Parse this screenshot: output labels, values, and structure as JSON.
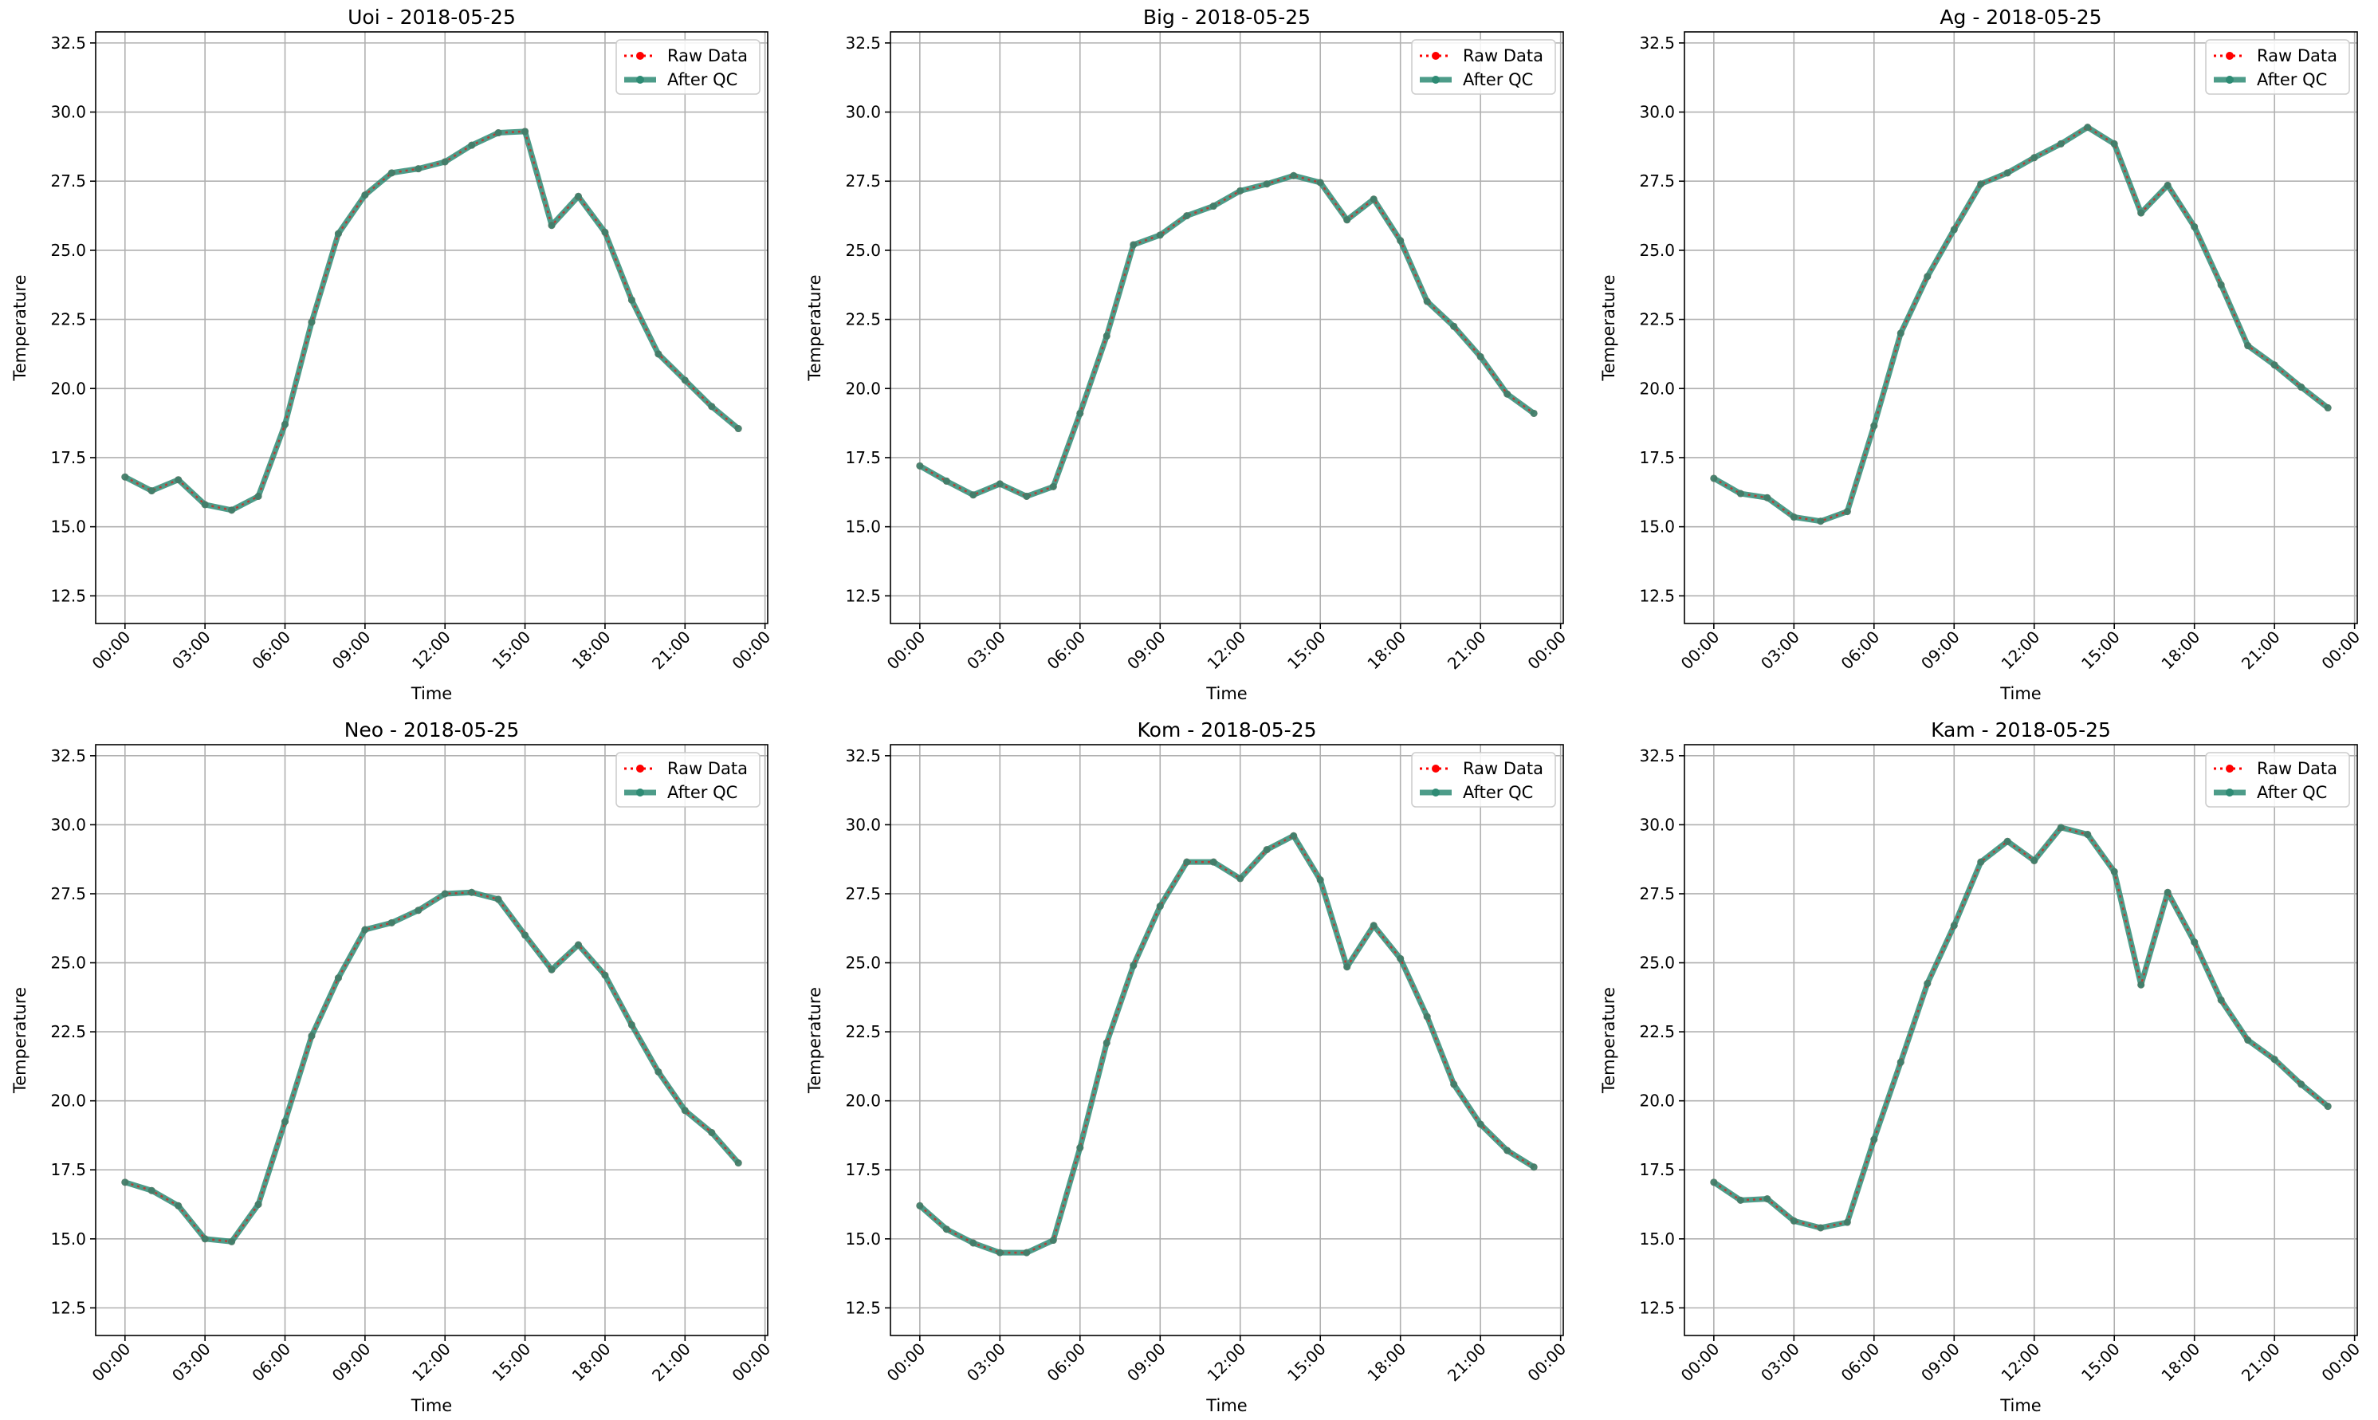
{
  "chart_data": [
    {
      "type": "line",
      "title": "Uoi - 2018-05-25",
      "xlabel": "Time",
      "ylabel": "Temperature",
      "xlim_hours": [
        -1.1,
        24.1
      ],
      "ylim": [
        11.5,
        32.9
      ],
      "x_tick_labels": [
        "00:00",
        "03:00",
        "06:00",
        "09:00",
        "12:00",
        "15:00",
        "18:00",
        "21:00",
        "00:00"
      ],
      "y_tick_labels": [
        "12.5",
        "15.0",
        "17.5",
        "20.0",
        "22.5",
        "25.0",
        "27.5",
        "30.0",
        "32.5"
      ],
      "grid": true,
      "legend_position": "upper-right",
      "legend": [
        "Raw Data",
        "After QC"
      ],
      "x": [
        "00:00",
        "01:00",
        "02:00",
        "03:00",
        "04:00",
        "05:00",
        "06:00",
        "07:00",
        "08:00",
        "09:00",
        "10:00",
        "11:00",
        "12:00",
        "13:00",
        "14:00",
        "15:00",
        "16:00",
        "17:00",
        "18:00",
        "19:00",
        "20:00",
        "21:00",
        "22:00",
        "23:00"
      ],
      "series": [
        {
          "name": "Raw Data",
          "values": [
            16.8,
            16.3,
            16.7,
            15.8,
            15.6,
            16.1,
            18.7,
            22.4,
            25.6,
            27.0,
            27.8,
            27.95,
            28.2,
            28.8,
            29.25,
            29.3,
            25.9,
            26.95,
            25.65,
            23.2,
            21.25,
            20.3,
            19.35,
            18.55
          ]
        },
        {
          "name": "After QC",
          "values": [
            16.8,
            16.3,
            16.7,
            15.8,
            15.6,
            16.1,
            18.7,
            22.4,
            25.6,
            27.0,
            27.8,
            27.95,
            28.2,
            28.8,
            29.25,
            29.3,
            25.9,
            26.95,
            25.65,
            23.2,
            21.25,
            20.3,
            19.35,
            18.55
          ]
        }
      ]
    },
    {
      "type": "line",
      "title": "Big - 2018-05-25",
      "xlabel": "Time",
      "ylabel": "Temperature",
      "xlim_hours": [
        -1.1,
        24.1
      ],
      "ylim": [
        11.5,
        32.9
      ],
      "x_tick_labels": [
        "00:00",
        "03:00",
        "06:00",
        "09:00",
        "12:00",
        "15:00",
        "18:00",
        "21:00",
        "00:00"
      ],
      "y_tick_labels": [
        "12.5",
        "15.0",
        "17.5",
        "20.0",
        "22.5",
        "25.0",
        "27.5",
        "30.0",
        "32.5"
      ],
      "grid": true,
      "legend_position": "upper-right",
      "legend": [
        "Raw Data",
        "After QC"
      ],
      "x": [
        "00:00",
        "01:00",
        "02:00",
        "03:00",
        "04:00",
        "05:00",
        "06:00",
        "07:00",
        "08:00",
        "09:00",
        "10:00",
        "11:00",
        "12:00",
        "13:00",
        "14:00",
        "15:00",
        "16:00",
        "17:00",
        "18:00",
        "19:00",
        "20:00",
        "21:00",
        "22:00",
        "23:00"
      ],
      "series": [
        {
          "name": "Raw Data",
          "values": [
            17.2,
            16.65,
            16.15,
            16.55,
            16.1,
            16.45,
            19.1,
            21.9,
            25.2,
            25.55,
            26.25,
            26.6,
            27.15,
            27.4,
            27.7,
            27.45,
            26.1,
            26.85,
            25.35,
            23.15,
            22.25,
            21.15,
            19.8,
            19.1
          ]
        },
        {
          "name": "After QC",
          "values": [
            17.2,
            16.65,
            16.15,
            16.55,
            16.1,
            16.45,
            19.1,
            21.9,
            25.2,
            25.55,
            26.25,
            26.6,
            27.15,
            27.4,
            27.7,
            27.45,
            26.1,
            26.85,
            25.35,
            23.15,
            22.25,
            21.15,
            19.8,
            19.1
          ]
        }
      ]
    },
    {
      "type": "line",
      "title": "Ag - 2018-05-25",
      "xlabel": "Time",
      "ylabel": "Temperature",
      "xlim_hours": [
        -1.1,
        24.1
      ],
      "ylim": [
        11.5,
        32.9
      ],
      "x_tick_labels": [
        "00:00",
        "03:00",
        "06:00",
        "09:00",
        "12:00",
        "15:00",
        "18:00",
        "21:00",
        "00:00"
      ],
      "y_tick_labels": [
        "12.5",
        "15.0",
        "17.5",
        "20.0",
        "22.5",
        "25.0",
        "27.5",
        "30.0",
        "32.5"
      ],
      "grid": true,
      "legend_position": "upper-right",
      "legend": [
        "Raw Data",
        "After QC"
      ],
      "x": [
        "00:00",
        "01:00",
        "02:00",
        "03:00",
        "04:00",
        "05:00",
        "06:00",
        "07:00",
        "08:00",
        "09:00",
        "10:00",
        "11:00",
        "12:00",
        "13:00",
        "14:00",
        "15:00",
        "16:00",
        "17:00",
        "18:00",
        "19:00",
        "20:00",
        "21:00",
        "22:00",
        "23:00"
      ],
      "series": [
        {
          "name": "Raw Data",
          "values": [
            16.75,
            16.2,
            16.05,
            15.35,
            15.2,
            15.55,
            18.65,
            22.0,
            24.05,
            25.75,
            27.4,
            27.8,
            28.35,
            28.85,
            29.45,
            28.85,
            26.35,
            27.35,
            25.85,
            23.75,
            21.55,
            20.85,
            20.05,
            19.3
          ]
        },
        {
          "name": "After QC",
          "values": [
            16.75,
            16.2,
            16.05,
            15.35,
            15.2,
            15.55,
            18.65,
            22.0,
            24.05,
            25.75,
            27.4,
            27.8,
            28.35,
            28.85,
            29.45,
            28.85,
            26.35,
            27.35,
            25.85,
            23.75,
            21.55,
            20.85,
            20.05,
            19.3
          ]
        }
      ]
    },
    {
      "type": "line",
      "title": "Neo - 2018-05-25",
      "xlabel": "Time",
      "ylabel": "Temperature",
      "xlim_hours": [
        -1.1,
        24.1
      ],
      "ylim": [
        11.5,
        32.9
      ],
      "x_tick_labels": [
        "00:00",
        "03:00",
        "06:00",
        "09:00",
        "12:00",
        "15:00",
        "18:00",
        "21:00",
        "00:00"
      ],
      "y_tick_labels": [
        "12.5",
        "15.0",
        "17.5",
        "20.0",
        "22.5",
        "25.0",
        "27.5",
        "30.0",
        "32.5"
      ],
      "grid": true,
      "legend_position": "upper-right",
      "legend": [
        "Raw Data",
        "After QC"
      ],
      "x": [
        "00:00",
        "01:00",
        "02:00",
        "03:00",
        "04:00",
        "05:00",
        "06:00",
        "07:00",
        "08:00",
        "09:00",
        "10:00",
        "11:00",
        "12:00",
        "13:00",
        "14:00",
        "15:00",
        "16:00",
        "17:00",
        "18:00",
        "19:00",
        "20:00",
        "21:00",
        "22:00",
        "23:00"
      ],
      "series": [
        {
          "name": "Raw Data",
          "values": [
            17.05,
            16.75,
            16.2,
            15.0,
            14.9,
            16.25,
            19.25,
            22.35,
            24.45,
            26.2,
            26.45,
            26.9,
            27.5,
            27.55,
            27.3,
            26.0,
            24.75,
            25.65,
            24.55,
            22.75,
            21.05,
            19.65,
            18.85,
            17.75
          ]
        },
        {
          "name": "After QC",
          "values": [
            17.05,
            16.75,
            16.2,
            15.0,
            14.9,
            16.25,
            19.25,
            22.35,
            24.45,
            26.2,
            26.45,
            26.9,
            27.5,
            27.55,
            27.3,
            26.0,
            24.75,
            25.65,
            24.55,
            22.75,
            21.05,
            19.65,
            18.85,
            17.75
          ]
        }
      ]
    },
    {
      "type": "line",
      "title": "Kom - 2018-05-25",
      "xlabel": "Time",
      "ylabel": "Temperature",
      "xlim_hours": [
        -1.1,
        24.1
      ],
      "ylim": [
        11.5,
        32.9
      ],
      "x_tick_labels": [
        "00:00",
        "03:00",
        "06:00",
        "09:00",
        "12:00",
        "15:00",
        "18:00",
        "21:00",
        "00:00"
      ],
      "y_tick_labels": [
        "12.5",
        "15.0",
        "17.5",
        "20.0",
        "22.5",
        "25.0",
        "27.5",
        "30.0",
        "32.5"
      ],
      "grid": true,
      "legend_position": "upper-right",
      "legend": [
        "Raw Data",
        "After QC"
      ],
      "x": [
        "00:00",
        "01:00",
        "02:00",
        "03:00",
        "04:00",
        "05:00",
        "06:00",
        "07:00",
        "08:00",
        "09:00",
        "10:00",
        "11:00",
        "12:00",
        "13:00",
        "14:00",
        "15:00",
        "16:00",
        "17:00",
        "18:00",
        "19:00",
        "20:00",
        "21:00",
        "22:00",
        "23:00"
      ],
      "series": [
        {
          "name": "Raw Data",
          "values": [
            16.2,
            15.35,
            14.85,
            14.5,
            14.5,
            14.95,
            18.3,
            22.1,
            24.9,
            27.05,
            28.65,
            28.65,
            28.05,
            29.1,
            29.6,
            28.0,
            24.85,
            26.35,
            25.15,
            23.05,
            20.6,
            19.15,
            18.2,
            17.6
          ]
        },
        {
          "name": "After QC",
          "values": [
            16.2,
            15.35,
            14.85,
            14.5,
            14.5,
            14.95,
            18.3,
            22.1,
            24.9,
            27.05,
            28.65,
            28.65,
            28.05,
            29.1,
            29.6,
            28.0,
            24.85,
            26.35,
            25.15,
            23.05,
            20.6,
            19.15,
            18.2,
            17.6
          ]
        }
      ]
    },
    {
      "type": "line",
      "title": "Kam - 2018-05-25",
      "xlabel": "Time",
      "ylabel": "Temperature",
      "xlim_hours": [
        -1.1,
        24.1
      ],
      "ylim": [
        11.5,
        32.9
      ],
      "x_tick_labels": [
        "00:00",
        "03:00",
        "06:00",
        "09:00",
        "12:00",
        "15:00",
        "18:00",
        "21:00",
        "00:00"
      ],
      "y_tick_labels": [
        "12.5",
        "15.0",
        "17.5",
        "20.0",
        "22.5",
        "25.0",
        "27.5",
        "30.0",
        "32.5"
      ],
      "grid": true,
      "legend_position": "upper-right",
      "legend": [
        "Raw Data",
        "After QC"
      ],
      "x": [
        "00:00",
        "01:00",
        "02:00",
        "03:00",
        "04:00",
        "05:00",
        "06:00",
        "07:00",
        "08:00",
        "09:00",
        "10:00",
        "11:00",
        "12:00",
        "13:00",
        "14:00",
        "15:00",
        "16:00",
        "17:00",
        "18:00",
        "19:00",
        "20:00",
        "21:00",
        "22:00",
        "23:00"
      ],
      "series": [
        {
          "name": "Raw Data",
          "values": [
            17.05,
            16.4,
            16.45,
            15.65,
            15.4,
            15.6,
            18.6,
            21.4,
            24.25,
            26.35,
            28.65,
            29.4,
            28.7,
            29.9,
            29.65,
            28.3,
            24.2,
            27.55,
            25.75,
            23.65,
            22.2,
            21.5,
            20.6,
            19.8
          ]
        },
        {
          "name": "After QC",
          "values": [
            17.05,
            16.4,
            16.45,
            15.65,
            15.4,
            15.6,
            18.6,
            21.4,
            24.25,
            26.35,
            28.65,
            29.4,
            28.7,
            29.9,
            29.65,
            28.3,
            24.2,
            27.55,
            25.75,
            23.65,
            22.2,
            21.5,
            20.6,
            19.8
          ]
        }
      ]
    }
  ],
  "colors": {
    "raw_data": "#ff0000",
    "after_qc": "#2e8b74",
    "grid": "#b0b0b0",
    "axes": "#000000",
    "legend_border": "#cccccc"
  }
}
